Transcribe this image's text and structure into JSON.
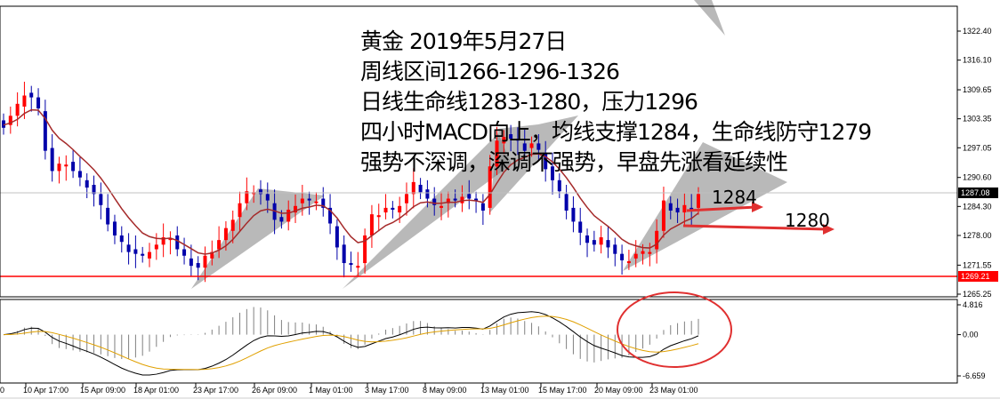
{
  "chart_data": {
    "type": "candlestick",
    "instrument_note": "",
    "closes": [
      1302,
      1304,
      1306,
      1309,
      1308,
      1305,
      1297,
      1292,
      1293,
      1294,
      1292,
      1290,
      1289,
      1287,
      1284,
      1281,
      1278,
      1276,
      1275,
      1274,
      1273,
      1275,
      1276,
      1277,
      1278,
      1275,
      1273,
      1272,
      1271,
      1273,
      1275,
      1277,
      1279,
      1282,
      1285,
      1287,
      1288,
      1287,
      1285,
      1282,
      1281,
      1283,
      1285,
      1286,
      1285,
      1286,
      1284,
      1280,
      1276,
      1272,
      1271,
      1272,
      1278,
      1282,
      1283,
      1284,
      1283,
      1285,
      1287,
      1289,
      1288,
      1286,
      1284,
      1285,
      1286,
      1285,
      1287,
      1286,
      1285,
      1284,
      1293,
      1298,
      1300,
      1299,
      1298,
      1297,
      1298,
      1296,
      1293,
      1290,
      1287,
      1284,
      1281,
      1278,
      1277,
      1276,
      1277,
      1276,
      1274,
      1272,
      1273,
      1274,
      1274,
      1275,
      1279,
      1285,
      1284,
      1283,
      1284,
      1284,
      1287
    ],
    "price_axis_ticks": [
      "1322.40",
      "1316.10",
      "1309.65",
      "1303.35",
      "1297.05",
      "1290.60",
      "1284.30",
      "1278.00",
      "1271.55",
      "1265.25"
    ],
    "ylim": [
      1265.25,
      1322.4
    ],
    "current_price": "1287.08",
    "support_line": "1269.21",
    "macd_axis_ticks": [
      "4.816",
      "0.00",
      "-6.659"
    ],
    "macd_ylim": [
      -6.659,
      4.816
    ],
    "time_labels": [
      "00",
      "10 Apr 17:00",
      "15 Apr 09:00",
      "18 Apr 01:00",
      "23 Apr 17:00",
      "26 Apr 09:00",
      "1 May 01:00",
      "3 May 17:00",
      "8 May 09:00",
      "13 May 01:00",
      "15 May 17:00",
      "20 May 09:00",
      "23 May 01:00"
    ],
    "colors": {
      "bull": "#ff0000",
      "bear": "#0000aa",
      "ma": "#a52a2a",
      "macd": "#000000",
      "signal": "#e0a000",
      "support": "#ff0000",
      "fan": "#808080"
    },
    "grid": false
  },
  "annotation": {
    "lines": [
      "黄金 2019年5月27日",
      "周线区间1266-1296-1326",
      "日线生命线1283-1280，压力1296",
      "四小时MACD向上，均线支撑1284，生命线防守1279",
      "强势不深调，深调不强势，早盘先涨看延续性"
    ],
    "target1": "1284",
    "target2": "1280"
  }
}
